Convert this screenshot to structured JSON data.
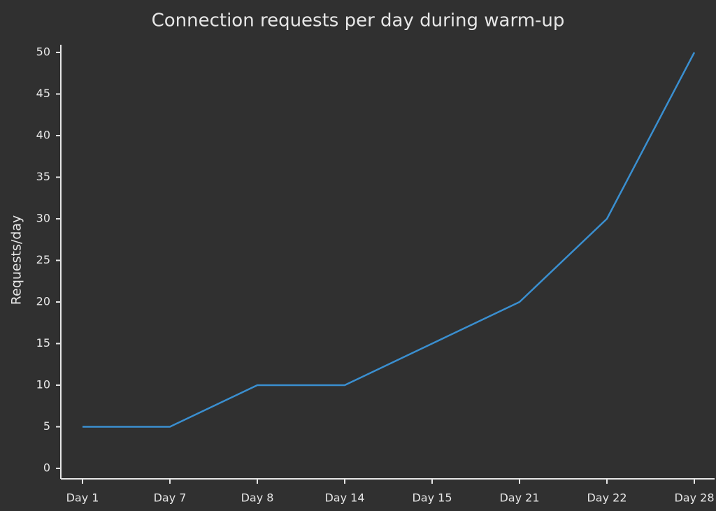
{
  "chart_data": {
    "type": "line",
    "title": "Connection requests per day during warm-up",
    "y_label": "Requests/day",
    "categories": [
      "Day 1",
      "Day 7",
      "Day 8",
      "Day 14",
      "Day 15",
      "Day 21",
      "Day 22",
      "Day 28"
    ],
    "series": [
      {
        "name": "Requests/day",
        "color": "#3a8fd0",
        "values": [
          5,
          5,
          10,
          10,
          15,
          20,
          30,
          50
        ]
      }
    ],
    "ylim": [
      0,
      50
    ],
    "yticks": [
      0,
      5,
      10,
      15,
      20,
      25,
      30,
      35,
      40,
      45,
      50
    ],
    "grid": false
  }
}
